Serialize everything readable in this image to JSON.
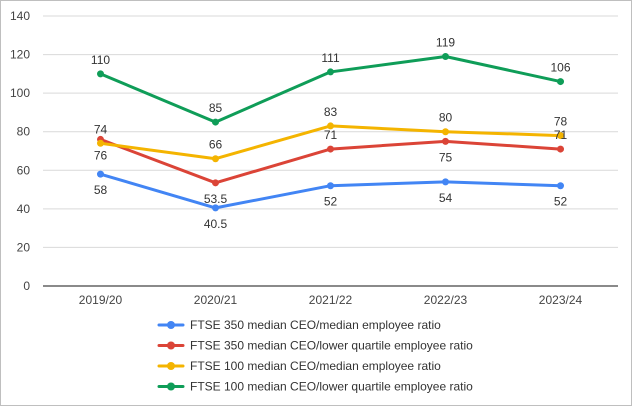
{
  "chart_data": {
    "type": "line",
    "title": "",
    "xlabel": "",
    "ylabel": "",
    "categories": [
      "2019/20",
      "2020/21",
      "2021/22",
      "2022/23",
      "2023/24"
    ],
    "ylim": [
      0,
      140
    ],
    "yticks": [
      0,
      20,
      40,
      60,
      80,
      100,
      120,
      140
    ],
    "grid": true,
    "legend_position": "bottom",
    "series": [
      {
        "name": "FTSE 350 median CEO/median employee ratio",
        "color": "#4285f4",
        "values": [
          58,
          40.5,
          52,
          54,
          52
        ],
        "labels": [
          "58",
          "40.5",
          "52",
          "54",
          "52"
        ],
        "label_side": [
          "below",
          "below",
          "below",
          "below",
          "below"
        ]
      },
      {
        "name": "FTSE 350 median CEO/lower quartile employee ratio",
        "color": "#db4437",
        "values": [
          76,
          53.5,
          71,
          75,
          71
        ],
        "labels": [
          "76",
          "53.5",
          "71",
          "75",
          "71"
        ],
        "label_side": [
          "below",
          "below",
          "above",
          "below",
          "above"
        ]
      },
      {
        "name": "FTSE 100 median CEO/median employee ratio",
        "color": "#f4b400",
        "values": [
          74,
          66,
          83,
          80,
          78
        ],
        "labels": [
          "74",
          "66",
          "83",
          "80",
          "78"
        ],
        "label_side": [
          "above",
          "above",
          "above",
          "above",
          "above"
        ]
      },
      {
        "name": "FTSE 100 median CEO/lower quartile employee ratio",
        "color": "#0f9d58",
        "values": [
          110,
          85,
          111,
          119,
          106
        ],
        "labels": [
          "110",
          "85",
          "111",
          "119",
          "106"
        ],
        "label_side": [
          "above",
          "above",
          "above",
          "above",
          "above"
        ]
      }
    ]
  }
}
